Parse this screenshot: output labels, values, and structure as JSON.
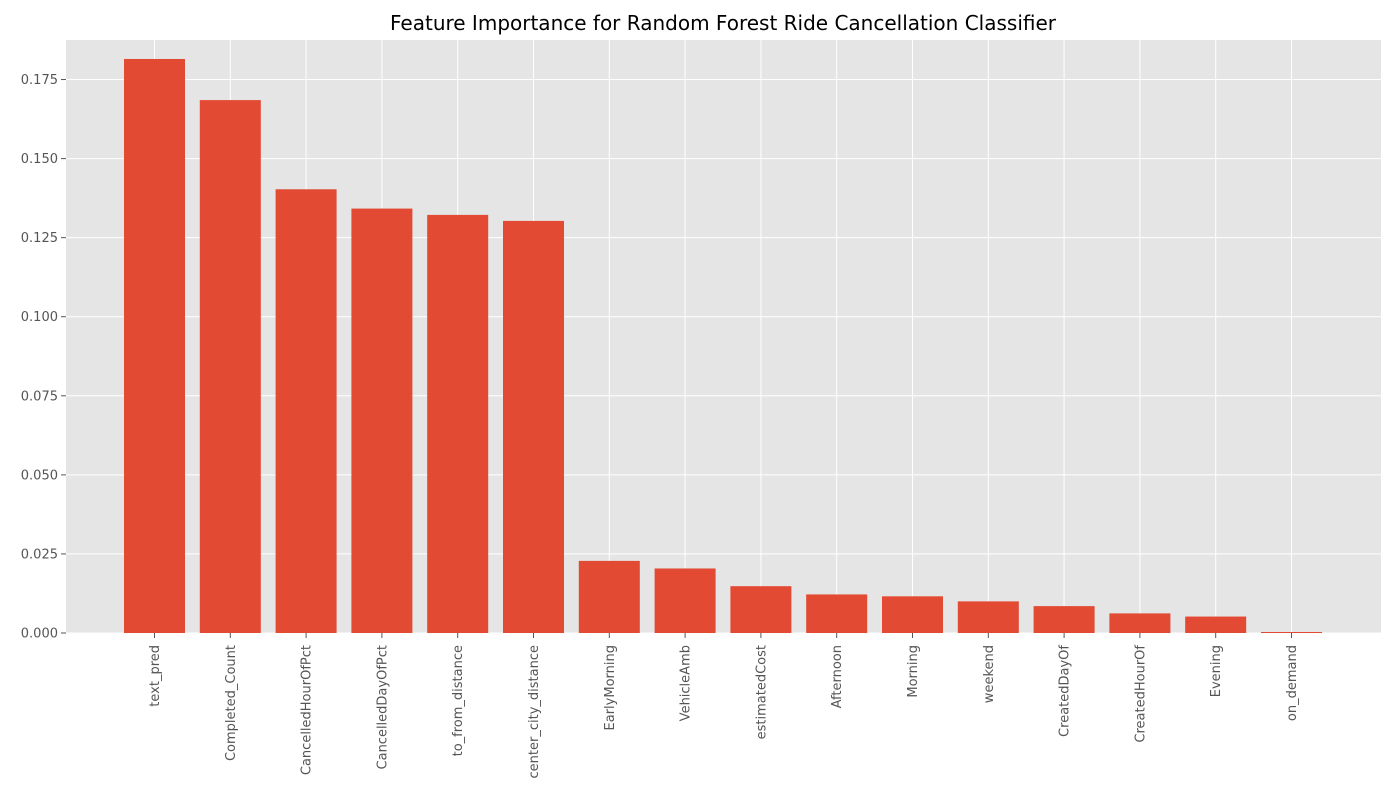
{
  "chart_data": {
    "type": "bar",
    "title": "Feature Importance for Random Forest Ride Cancellation Classifier",
    "xlabel": "",
    "ylabel": "",
    "categories": [
      "text_pred",
      "Completed_Count",
      "CancelledHourOfPct",
      "CancelledDayOfPct",
      "to_from_distance",
      "center_city_distance",
      "EarlyMorning",
      "VehicleAmb",
      "estimatedCost",
      "Afternoon",
      "Morning",
      "weekend",
      "CreatedDayOf",
      "CreatedHourOf",
      "Evening",
      "on_demand"
    ],
    "values": [
      0.1815,
      0.1685,
      0.1403,
      0.1342,
      0.1322,
      0.1303,
      0.0228,
      0.0204,
      0.0148,
      0.0122,
      0.0116,
      0.01,
      0.0085,
      0.0062,
      0.0052,
      0.0003
    ],
    "ylim": [
      0.0,
      0.1875
    ],
    "yticks": [
      0.0,
      0.025,
      0.05,
      0.075,
      0.1,
      0.125,
      0.15,
      0.175
    ],
    "ytick_labels": [
      "0.000",
      "0.025",
      "0.050",
      "0.075",
      "0.100",
      "0.125",
      "0.150",
      "0.175"
    ],
    "grid": true,
    "style": "ggplot",
    "colors": {
      "bar": "#E24A33",
      "plot_background": "#E5E5E5",
      "grid": "#FFFFFF",
      "tick_text": "#555555"
    }
  }
}
